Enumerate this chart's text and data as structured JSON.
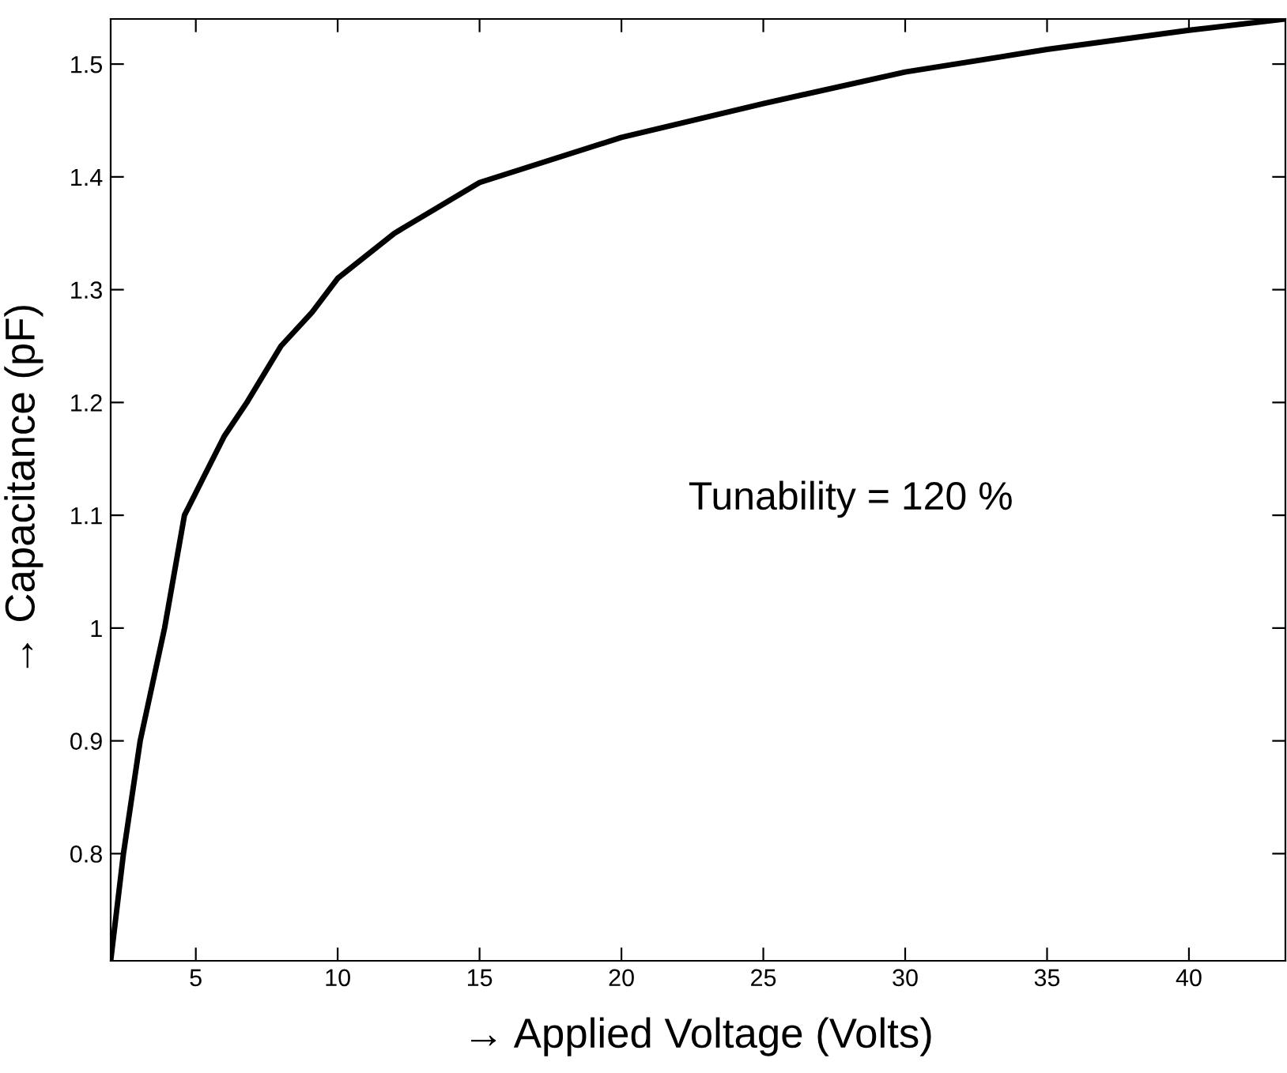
{
  "chart_data": {
    "type": "line",
    "xlabel": "→ Applied Voltage (Volts)",
    "ylabel": "→ Capacitance (pF)",
    "annotations": [
      "Tunability = 120 %"
    ],
    "x": [
      2.0,
      2.45,
      3.04,
      3.9,
      4.6,
      5,
      6,
      6.8,
      8,
      9.1,
      10,
      12,
      15,
      20,
      25,
      30,
      35,
      40,
      43.4
    ],
    "series": [
      {
        "color": "#000000",
        "values": [
          0.705,
          0.8,
          0.9,
          1.0,
          1.1,
          1.12,
          1.17,
          1.2,
          1.25,
          1.28,
          1.31,
          1.35,
          1.395,
          1.435,
          1.465,
          1.493,
          1.513,
          1.53,
          1.54
        ]
      }
    ],
    "xlim": [
      2,
      43.4
    ],
    "ylim": [
      0.705,
      1.54
    ],
    "xticks": [
      5,
      10,
      15,
      20,
      25,
      30,
      35,
      40
    ],
    "yticks": [
      0.8,
      0.9,
      1,
      1.1,
      1.2,
      1.3,
      1.4,
      1.5
    ],
    "grid": false,
    "legend": false,
    "marker": "none",
    "line_style": "solid"
  }
}
